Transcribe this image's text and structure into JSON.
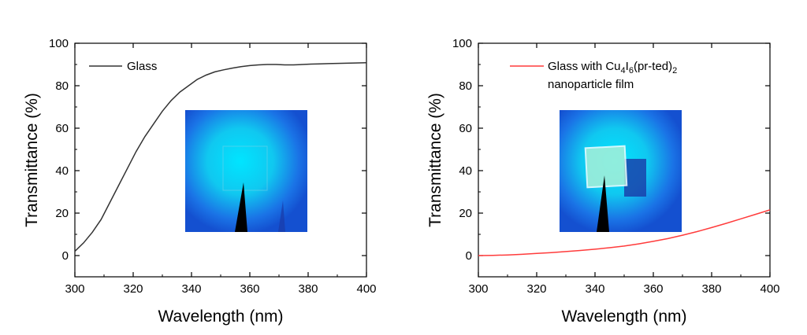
{
  "chart_data": [
    {
      "type": "line",
      "xlabel": "Wavelength (nm)",
      "ylabel": "Transmittance (%)",
      "xlim": [
        300,
        400
      ],
      "ylim": [
        -10,
        100
      ],
      "xticks": [
        300,
        320,
        340,
        360,
        380,
        400
      ],
      "yticks": [
        0,
        20,
        40,
        60,
        80,
        100
      ],
      "legend_position": "top-left",
      "grid": false,
      "series": [
        {
          "name": "Glass",
          "color": "#333333",
          "x": [
            300,
            303,
            306,
            309,
            312,
            315,
            318,
            321,
            324,
            327,
            330,
            333,
            336,
            339,
            342,
            345,
            348,
            351,
            354,
            357,
            360,
            363,
            366,
            369,
            372,
            375,
            378,
            381,
            384,
            387,
            390,
            393,
            396,
            400
          ],
          "y": [
            2,
            6,
            11,
            17,
            25,
            33,
            41,
            49,
            56,
            62,
            68,
            73,
            77,
            80,
            83,
            85,
            86.5,
            87.5,
            88.3,
            89,
            89.5,
            89.8,
            90,
            90,
            89.8,
            89.8,
            90,
            90.2,
            90.3,
            90.4,
            90.5,
            90.6,
            90.7,
            90.8
          ]
        }
      ],
      "inset": {
        "type": "photo",
        "background_color": "#1a73e6",
        "glow_color": "#00e5ff",
        "description_icon": "uv-lamp-glass-photo"
      }
    },
    {
      "type": "line",
      "xlabel": "Wavelength (nm)",
      "ylabel": "Transmittance (%)",
      "xlim": [
        300,
        400
      ],
      "ylim": [
        -10,
        100
      ],
      "xticks": [
        300,
        320,
        340,
        360,
        380,
        400
      ],
      "yticks": [
        0,
        20,
        40,
        60,
        80,
        100
      ],
      "legend_position": "top-left",
      "grid": false,
      "series": [
        {
          "name_parts": [
            "Glass with Cu",
            "4",
            "I",
            "6",
            "(pr-ted)",
            "2"
          ],
          "name_line2": "nanoparticle film",
          "color": "#ff3b3b",
          "x": [
            300,
            305,
            310,
            315,
            320,
            325,
            330,
            335,
            340,
            345,
            350,
            355,
            360,
            365,
            370,
            375,
            380,
            385,
            390,
            395,
            400
          ],
          "y": [
            0,
            0.1,
            0.3,
            0.6,
            1,
            1.4,
            1.9,
            2.4,
            3,
            3.7,
            4.5,
            5.5,
            6.7,
            8,
            9.6,
            11.3,
            13.2,
            15.2,
            17.3,
            19.4,
            21.5
          ]
        }
      ],
      "inset": {
        "type": "photo",
        "background_color": "#1a73e6",
        "glow_color": "#00e5ff",
        "description_icon": "uv-lamp-film-photo"
      }
    }
  ]
}
